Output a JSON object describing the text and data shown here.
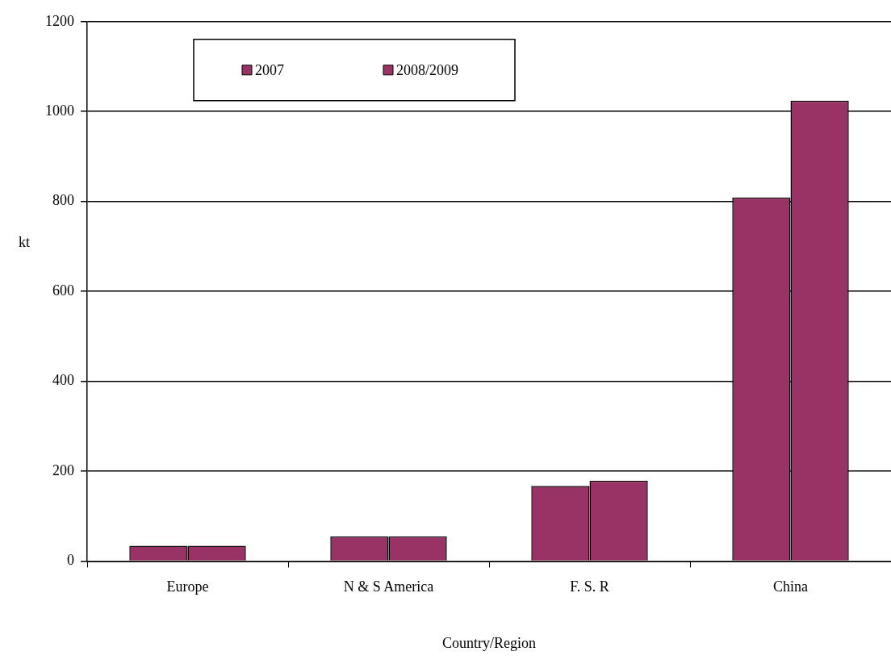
{
  "chart_data": {
    "type": "bar",
    "xlabel": "Country/Region",
    "ylabel": "kt",
    "categories": [
      "Europe",
      "N & S America",
      "F. S. R",
      "China"
    ],
    "series": [
      {
        "name": "2007",
        "color": "#993366",
        "values": [
          34,
          55,
          167,
          809
        ]
      },
      {
        "name": "2008/2009",
        "color": "#993366",
        "values": [
          34,
          55,
          179,
          1024
        ]
      }
    ],
    "ylim": [
      0,
      1200
    ],
    "yticks": [
      0,
      200,
      400,
      600,
      800,
      1000,
      1200
    ],
    "grid": "y",
    "legend": "top left"
  }
}
